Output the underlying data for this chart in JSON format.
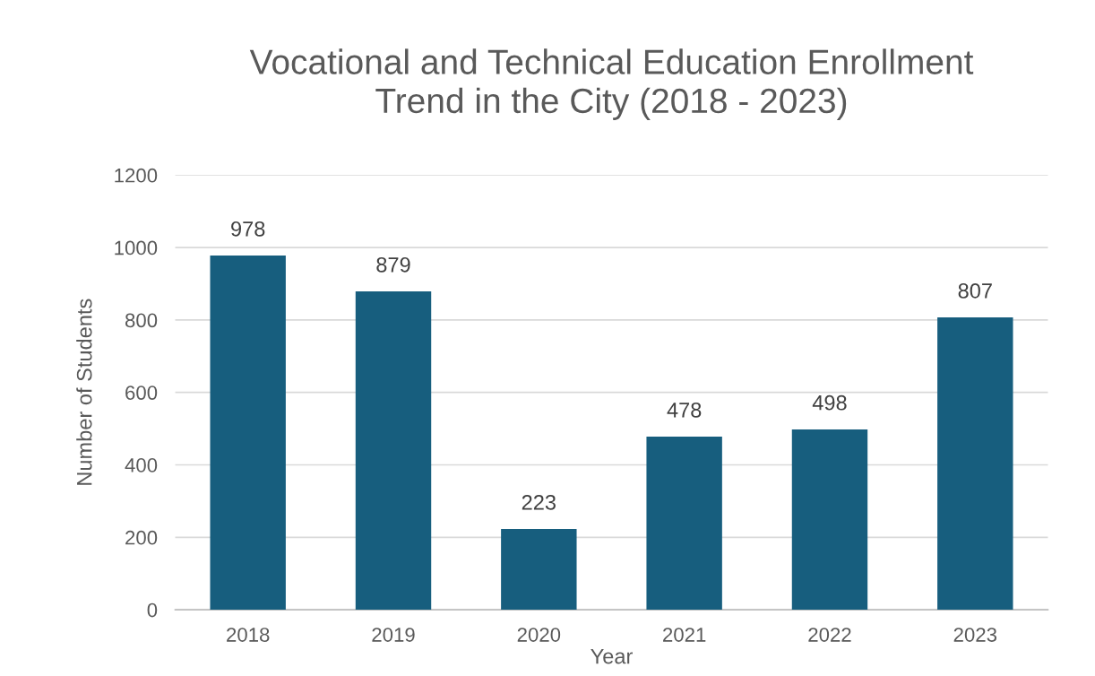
{
  "chart_data": {
    "type": "bar",
    "title": "Vocational and Technical Education Enrollment\nTrend in the City (2018 - 2023)",
    "xlabel": "Year",
    "ylabel": "Number of Students",
    "categories": [
      "2018",
      "2019",
      "2020",
      "2021",
      "2022",
      "2023"
    ],
    "values": [
      978,
      879,
      223,
      478,
      498,
      807
    ],
    "color": "#175e7e",
    "ylim": [
      0,
      1200
    ],
    "yticks": [
      0,
      200,
      400,
      600,
      800,
      1000,
      1200
    ],
    "grid": "y",
    "data_labels": true,
    "legend": false
  }
}
